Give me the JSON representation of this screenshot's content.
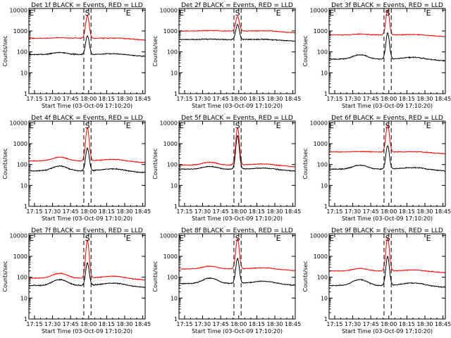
{
  "chart_data": {
    "type": "line",
    "x_tick_labels": [
      "17:15",
      "17:30",
      "17:45",
      "18:00",
      "18:15",
      "18:30",
      "18:45"
    ],
    "x_tick_minutes": [
      15,
      30,
      45,
      60,
      75,
      90,
      105
    ],
    "xlim_minutes_after_1700": [
      10.333,
      107
    ],
    "y_scale": "log",
    "y_tick_labels": [
      "1",
      "10",
      "100",
      "1000",
      "10000"
    ],
    "y_tick_values": [
      1,
      10,
      100,
      1000,
      10000
    ],
    "ylim": [
      1,
      12000
    ],
    "ylabel": "Counts/sec",
    "xlabel": "Start Time (03-Oct-09 17:10:20)",
    "dashed_lines_minutes": [
      56,
      62
    ],
    "marker_labels": [
      {
        "text": "E",
        "minute": 12.5
      },
      {
        "text": "S",
        "minute": 59
      },
      {
        "text": "E",
        "minute": 93
      }
    ],
    "series_colors": {
      "events": "#000000",
      "lld": "#ff0000"
    },
    "panels": [
      {
        "title": "Det 1f BLACK = Events, RED = LLD",
        "events": {
          "base": 75,
          "bump": 1.25,
          "peak": 600
        },
        "lld": {
          "base": 450,
          "bump": 1.05,
          "peak": 5500
        }
      },
      {
        "title": "Det 2f BLACK = Events, RED = LLD",
        "events": {
          "base": 390,
          "bump": 1.05,
          "peak": 2000
        },
        "lld": {
          "base": 1000,
          "bump": 1.05,
          "peak": 5000
        }
      },
      {
        "title": "Det 3f BLACK = Events, RED = LLD",
        "events": {
          "base": 45,
          "bump": 1.6,
          "peak": 800
        },
        "lld": {
          "base": 650,
          "bump": 1.1,
          "peak": 9500
        }
      },
      {
        "title": "Det 4f BLACK = Events, RED = LLD",
        "events": {
          "base": 50,
          "bump": 1.7,
          "peak": 600
        },
        "lld": {
          "base": 150,
          "bump": 1.5,
          "peak": 6000
        }
      },
      {
        "title": "Det 5f BLACK = Events, RED = LLD",
        "events": {
          "base": 60,
          "bump": 1.35,
          "peak": 2500
        },
        "lld": {
          "base": 95,
          "bump": 1.35,
          "peak": 6000
        }
      },
      {
        "title": "Det 6f BLACK = Events, RED = LLD",
        "events": {
          "base": 60,
          "bump": 1.55,
          "peak": 800
        },
        "lld": {
          "base": 400,
          "bump": 1.05,
          "peak": 8000
        }
      },
      {
        "title": "Det 7f BLACK = Events, RED = LLD",
        "events": {
          "base": 40,
          "bump": 1.9,
          "peak": 500
        },
        "lld": {
          "base": 90,
          "bump": 1.7,
          "peak": 6000
        }
      },
      {
        "title": "Det 8f BLACK = Events, RED = LLD",
        "events": {
          "base": 50,
          "bump": 1.8,
          "peak": 800
        },
        "lld": {
          "base": 250,
          "bump": 1.35,
          "peak": 7000
        }
      },
      {
        "title": "Det 9f BLACK = Events, RED = LLD",
        "events": {
          "base": 40,
          "bump": 1.9,
          "peak": 1000
        },
        "lld": {
          "base": 200,
          "bump": 1.3,
          "peak": 8000
        }
      }
    ]
  }
}
